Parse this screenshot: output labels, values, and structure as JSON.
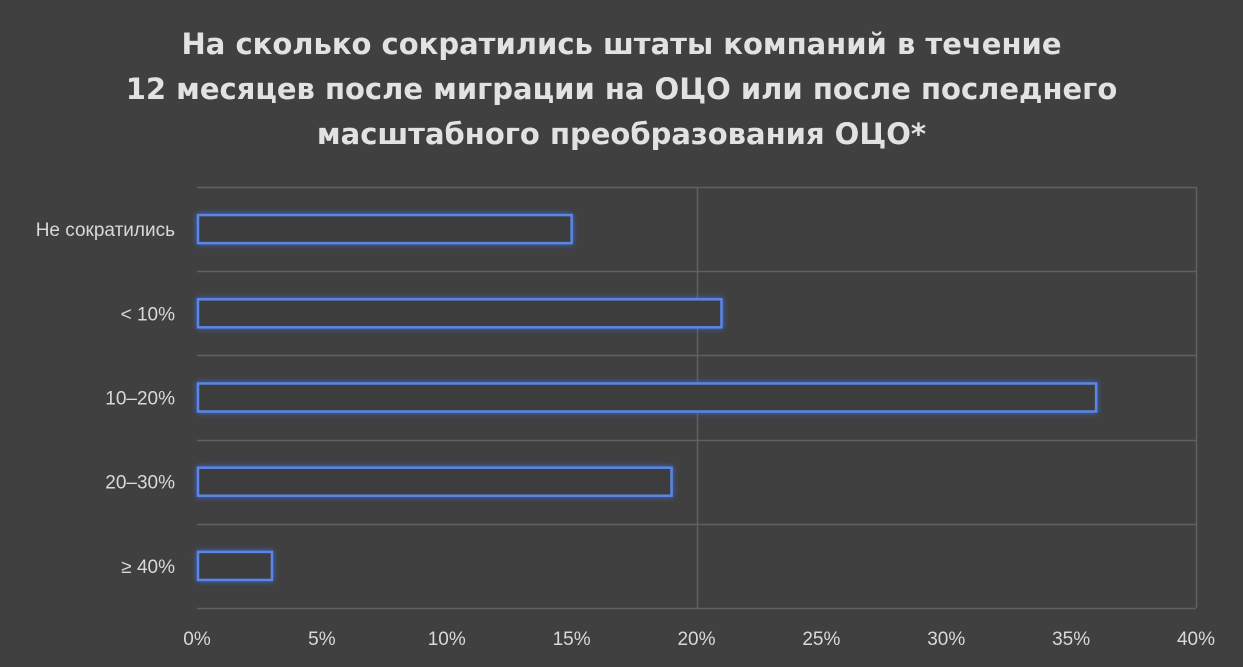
{
  "chart_data": {
    "type": "bar",
    "orientation": "horizontal",
    "title_lines": [
      "На сколько сократились штаты компаний в течение",
      "12 месяцев после миграции на ОЦО или после последнего",
      "масштабного преобразования ОЦО*"
    ],
    "categories": [
      "Не сократились",
      "< 10%",
      "10–20%",
      "20–30%",
      "≥ 40%"
    ],
    "values": [
      15,
      21,
      36,
      19,
      3
    ],
    "value_unit": "%",
    "xlim": [
      0,
      40
    ],
    "x_ticks": [
      "0%",
      "5%",
      "10%",
      "15%",
      "20%",
      "25%",
      "30%",
      "35%",
      "40%"
    ],
    "grid": true,
    "legend": "none"
  },
  "colors": {
    "background": "#404040",
    "bar_outline": "#5b86e5",
    "gridline": "#606060",
    "text": "#d9d9d9"
  }
}
